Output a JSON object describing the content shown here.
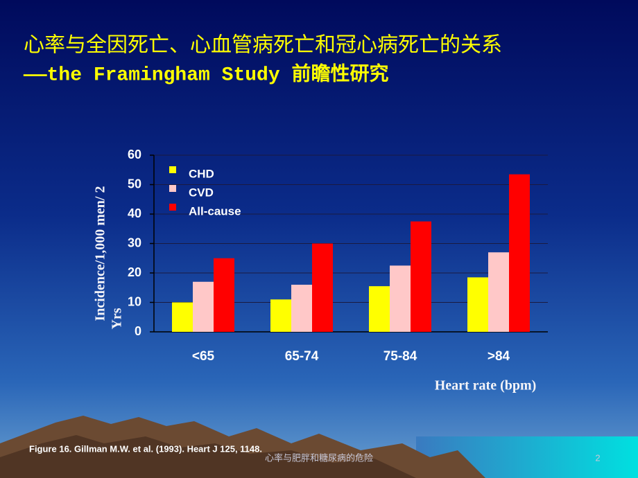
{
  "chart_data": {
    "type": "bar",
    "title": "心率与全因死亡、心血管病死亡和冠心病死亡的关系",
    "subtitle": "——the Framingham Study 前瞻性研究",
    "y_label": [
      "Incidence/1,000 men/ 2",
      "Yrs"
    ],
    "x_label": "Heart rate (bpm)",
    "source": "Figure 16. Gillman M.W. et al. (1993). Heart J 125, 1148.",
    "categories": [
      "<65",
      "65-74",
      "75-84",
      ">84"
    ],
    "series": [
      {
        "name": "CHD",
        "color": "#ffff00",
        "values": [
          10,
          11,
          15.5,
          18.5
        ]
      },
      {
        "name": "CVD",
        "color": "#ffc8c8",
        "values": [
          17,
          16,
          22.5,
          27
        ]
      },
      {
        "name": "All-cause",
        "color": "#ff0000",
        "values": [
          25,
          30,
          37.5,
          53.5
        ]
      }
    ],
    "ylim": [
      0,
      60
    ],
    "yticks": [
      0,
      10,
      20,
      30,
      40,
      50,
      60
    ],
    "grid": true,
    "legend": "upper left"
  },
  "footer": {
    "text": "心率与肥胖和糖尿病的危险",
    "page_number": "2"
  }
}
